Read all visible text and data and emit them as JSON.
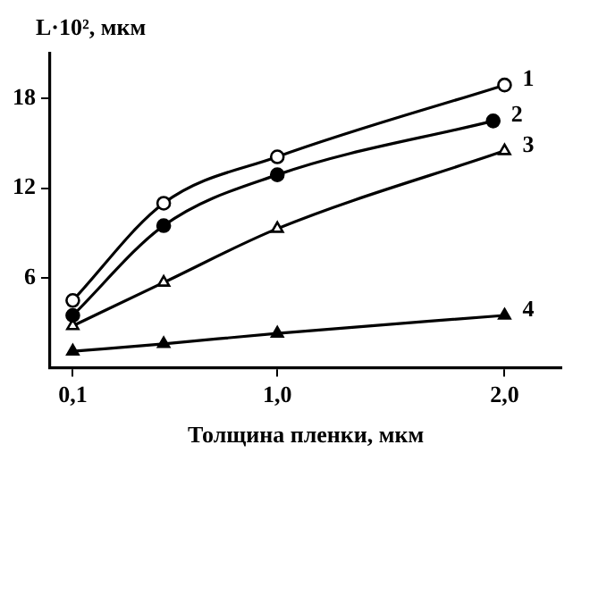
{
  "chart_data": {
    "type": "line",
    "xlabel": "Толщина пленки, мкм",
    "ylabel": "L·10², мкм",
    "xlim": [
      0,
      2.25
    ],
    "ylim": [
      0,
      21
    ],
    "xticks": [
      {
        "value": 0.1,
        "label": "0,1"
      },
      {
        "value": 1,
        "label": "1,0"
      },
      {
        "value": 2,
        "label": "2,0"
      }
    ],
    "yticks": [
      6,
      12,
      18
    ],
    "grid": false,
    "legend": false,
    "series": [
      {
        "name": "1",
        "color": "#000000",
        "marker": "circle",
        "x": [
          0.1,
          0.5,
          1.0,
          2.0
        ],
        "values": [
          4.5,
          11,
          14.1,
          18.9
        ]
      },
      {
        "name": "2",
        "color": "#000000",
        "marker": "circle",
        "x": [
          0.1,
          0.5,
          1.0,
          1.95
        ],
        "values": [
          3.5,
          9.5,
          12.9,
          16.5
        ]
      },
      {
        "name": "3",
        "color": "#000000",
        "marker": "triangle",
        "x": [
          0.1,
          0.5,
          1.0,
          2.0
        ],
        "values": [
          2.8,
          5.7,
          9.3,
          14.5
        ]
      },
      {
        "name": "4",
        "color": "#000000",
        "marker": "triangle",
        "x": [
          0.1,
          0.5,
          1.0,
          2.0
        ],
        "values": [
          1.1,
          1.6,
          2.3,
          3.5
        ]
      }
    ]
  }
}
